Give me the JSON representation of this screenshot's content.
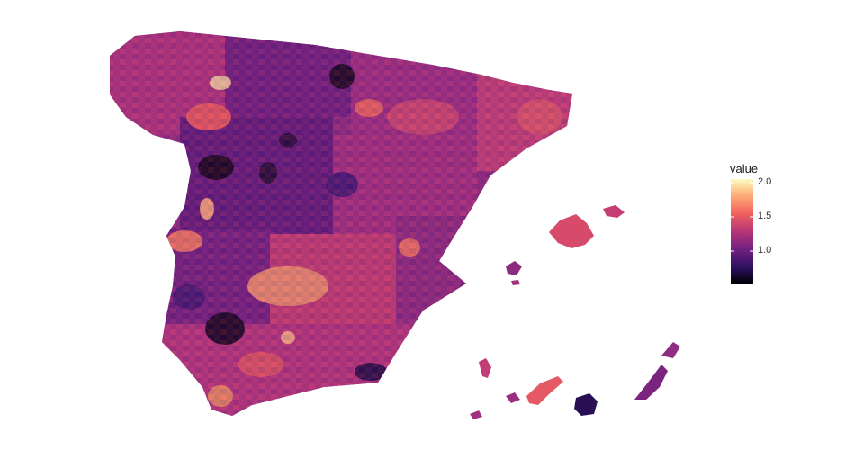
{
  "legend": {
    "title": "value",
    "range": [
      0.5,
      2.0
    ],
    "ticks": [
      {
        "label": "2.0",
        "value": 2.0
      },
      {
        "label": "1.5",
        "value": 1.5
      },
      {
        "label": "1.0",
        "value": 1.0
      }
    ]
  },
  "palette": [
    "#000004",
    "#2c115f",
    "#721f81",
    "#b73779",
    "#f1605d",
    "#feb078",
    "#fcfdbf"
  ],
  "map": {
    "projection": "spain-provinces-with-canary-islands-inset",
    "background": "#ffffff"
  }
}
